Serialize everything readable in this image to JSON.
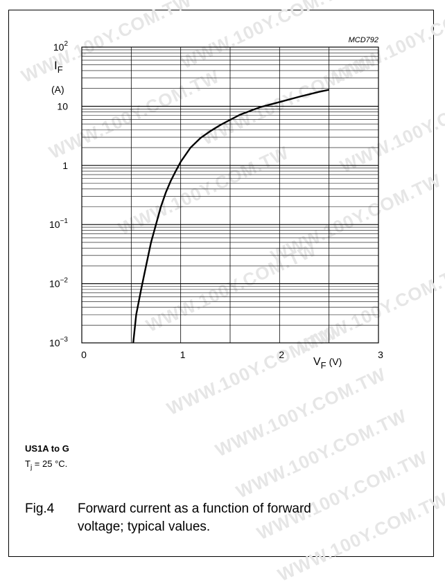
{
  "chart_data": {
    "type": "line",
    "code": "MCD792",
    "ylabel_main": "I",
    "ylabel_sub": "F",
    "ylabel_unit": "(A)",
    "xlabel_main": "V",
    "xlabel_sub": "F",
    "xlabel_unit": "(V)",
    "x_scale": "linear",
    "y_scale": "log",
    "xlim": [
      0,
      3
    ],
    "ylim": [
      0.001,
      100
    ],
    "x_ticks": [
      "0",
      "1",
      "2",
      "3"
    ],
    "y_ticks": [
      {
        "base": "10",
        "exp": "2"
      },
      {
        "base": "10",
        "exp": ""
      },
      {
        "base": "1",
        "exp": ""
      },
      {
        "base": "10",
        "exp": "−1"
      },
      {
        "base": "10",
        "exp": "−2"
      },
      {
        "base": "10",
        "exp": "−3"
      }
    ],
    "grid": true,
    "series": [
      {
        "x": [
          0.52,
          0.55,
          0.6,
          0.65,
          0.7,
          0.75,
          0.8,
          0.85,
          0.9,
          0.95,
          1.0,
          1.1,
          1.2,
          1.3,
          1.4,
          1.5,
          1.6,
          1.7,
          1.8,
          2.0,
          2.2,
          2.4,
          2.5
        ],
        "y": [
          0.001,
          0.003,
          0.008,
          0.02,
          0.05,
          0.1,
          0.2,
          0.35,
          0.55,
          0.8,
          1.15,
          2.0,
          2.9,
          3.8,
          4.8,
          5.9,
          7.2,
          8.3,
          9.6,
          11.8,
          14.5,
          17.5,
          19.0
        ]
      }
    ]
  },
  "conditions": {
    "title": "US1A to G",
    "tj_main": "T",
    "tj_sub": "j",
    "tj_rest": " = 25 °C."
  },
  "caption": {
    "fig": "Fig.4",
    "line1": "Forward current as a function of forward",
    "line2": "voltage; typical values."
  },
  "watermark": "WWW.100Y.COM.TW"
}
